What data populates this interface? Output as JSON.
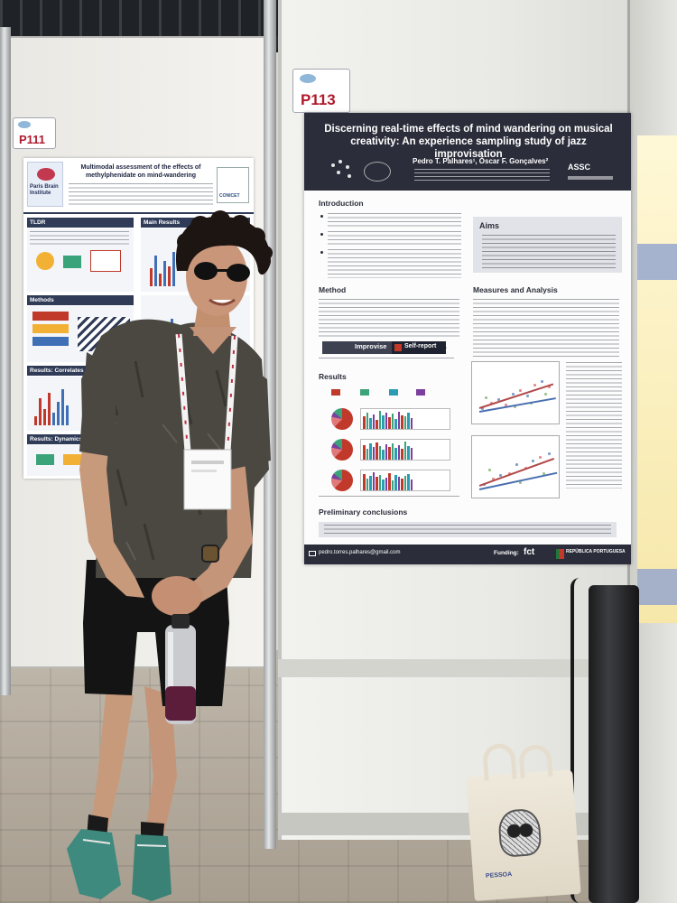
{
  "poster_labels": {
    "left": "P111",
    "right": "P113"
  },
  "left_poster": {
    "institute_logo": "Paris Brain Institute",
    "title": "Multimodal assessment of the effects of methylphenidate on mind-wandering",
    "partner_logo": "CONICET",
    "sections": {
      "tldr": "TLDR",
      "main_results": "Main Results",
      "methods": "Methods",
      "results_correlates": "Results: Correlates of Mind-wa",
      "results_dynamics": "Results: Dynamics"
    }
  },
  "main_poster": {
    "title": "Discerning real-time effects of mind wandering on musical creativity: An experience sampling study of jazz improvisation",
    "authors": "Pedro T. Palhares¹, Óscar F. Gonçalves²",
    "logo_assc": "ASSC",
    "sections": {
      "introduction": "Introduction",
      "aims": "Aims",
      "method": "Method",
      "measures": "Measures and Analysis",
      "results": "Results",
      "conclusions": "Preliminary conclusions"
    },
    "flow": {
      "improvise": "Improvise",
      "self_report": "Self-report"
    },
    "contact": "pedro.torres.palhares@gmail.com",
    "funding_label": "Funding:",
    "funder_fct": "fct",
    "funder_republica": "REPÚBLICA PORTUGUESA"
  },
  "tote_bag": {
    "print": "PESSOA"
  },
  "colors": {
    "poster_header": "#2b2d3a",
    "label_red": "#b0192c",
    "shirt": "#4b4842",
    "shorts": "#141414",
    "shoes": "#3f8a7e",
    "bottle_cap": "#5b1d3a"
  }
}
